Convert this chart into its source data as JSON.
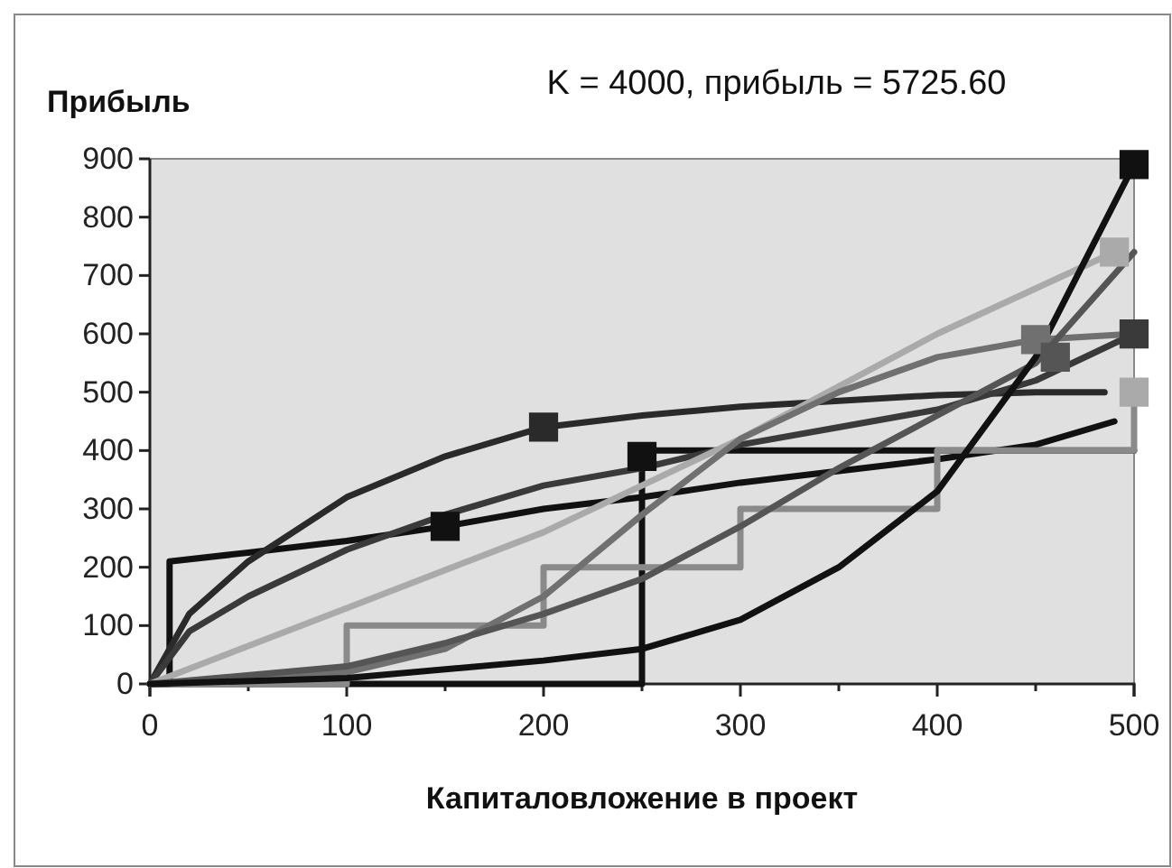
{
  "chart_data": {
    "type": "line",
    "title": "K = 4000, прибыль = 5725.60",
    "xlabel": "Капиталовложение в проект",
    "ylabel": "Прибыль",
    "xlim": [
      0,
      500
    ],
    "ylim": [
      0,
      900
    ],
    "xticks": [
      0,
      {
        "value": 50,
        "label": null
      },
      100,
      {
        "value": 150,
        "label": null
      },
      200,
      {
        "value": 250,
        "label": null
      },
      300,
      {
        "value": 350,
        "label": null
      },
      400,
      {
        "value": 450,
        "label": null
      },
      500
    ],
    "yticks": [
      0,
      100,
      200,
      300,
      400,
      500,
      600,
      700,
      800,
      900
    ],
    "grid": false,
    "marker": "none",
    "line_style": "solid",
    "series": [
      {
        "color": "#111111",
        "x": [
          0,
          10,
          10,
          50,
          100,
          150,
          200,
          250,
          300,
          350,
          400,
          450,
          490
        ],
        "values": [
          0,
          0,
          210,
          225,
          245,
          270,
          300,
          320,
          345,
          365,
          385,
          410,
          450
        ]
      },
      {
        "color": "#111111",
        "x": [
          0,
          250,
          250,
          500
        ],
        "values": [
          0,
          0,
          400,
          400
        ]
      },
      {
        "color": "#2a2a2a",
        "x": [
          0,
          20,
          50,
          100,
          150,
          200,
          250,
          300,
          350,
          400,
          450,
          485
        ],
        "values": [
          0,
          120,
          210,
          320,
          390,
          440,
          460,
          475,
          485,
          495,
          500,
          500
        ]
      },
      {
        "color": "#3a3a3a",
        "x": [
          0,
          20,
          50,
          100,
          150,
          200,
          250,
          300,
          350,
          400,
          450,
          500
        ],
        "values": [
          0,
          90,
          150,
          230,
          290,
          340,
          370,
          410,
          440,
          470,
          520,
          600
        ]
      },
      {
        "color": "#aaaaaa",
        "x": [
          0,
          100,
          200,
          300,
          400,
          490
        ],
        "values": [
          0,
          130,
          260,
          420,
          600,
          740
        ]
      },
      {
        "color": "#8a8a8a",
        "x": [
          0,
          100,
          100,
          200,
          200,
          300,
          300,
          400,
          400,
          500,
          500
        ],
        "values": [
          0,
          0,
          100,
          100,
          200,
          200,
          300,
          300,
          400,
          400,
          500
        ]
      },
      {
        "color": "#707070",
        "x": [
          0,
          100,
          150,
          200,
          250,
          300,
          350,
          400,
          450,
          500
        ],
        "values": [
          0,
          20,
          60,
          150,
          290,
          420,
          500,
          560,
          590,
          600
        ]
      },
      {
        "color": "#555555",
        "x": [
          0,
          100,
          150,
          200,
          250,
          300,
          350,
          400,
          450,
          500
        ],
        "values": [
          0,
          30,
          70,
          120,
          180,
          270,
          370,
          460,
          550,
          740
        ]
      },
      {
        "color": "#111111",
        "x": [
          0,
          100,
          200,
          250,
          300,
          350,
          400,
          450,
          500
        ],
        "values": [
          0,
          10,
          40,
          60,
          110,
          200,
          330,
          560,
          890
        ]
      },
      {
        "type": "scatter",
        "marker": "square",
        "x": [
          150,
          200,
          250,
          450,
          460,
          490,
          500,
          500,
          500
        ],
        "values": [
          270,
          440,
          390,
          590,
          560,
          740,
          890,
          600,
          500
        ],
        "colors": [
          "#111111",
          "#2a2a2a",
          "#111111",
          "#707070",
          "#555555",
          "#aaaaaa",
          "#111111",
          "#3a3a3a",
          "#aaaaaa"
        ]
      }
    ]
  }
}
